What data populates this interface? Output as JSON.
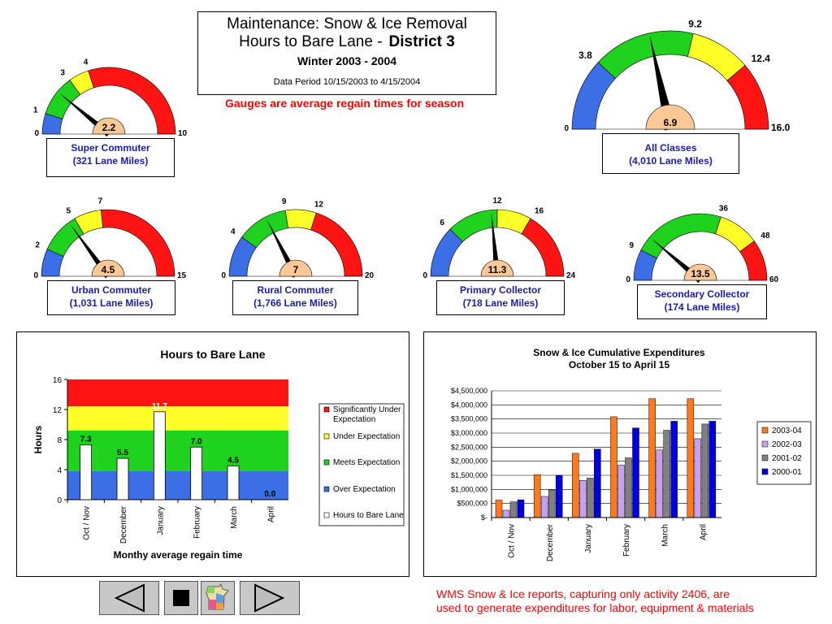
{
  "header": {
    "title_line1": "Maintenance: Snow & Ice Removal",
    "title_line2": "Hours to Bare Lane -",
    "district": "District 3",
    "season": "Winter  2003 - 2004",
    "data_period": "Data Period 10/15/2003 to 4/15/2004",
    "subtitle": "Gauges are average regain times for season"
  },
  "colors": {
    "blue": "#3c6ee6",
    "green": "#1ed21e",
    "yellow": "#ffff28",
    "red": "#ff1414",
    "hub": "#fcc896",
    "label_blue": "#1c1ca8",
    "note_red": "#ff0000"
  },
  "gauges": [
    {
      "id": "super",
      "value": 2.2,
      "value_label": "2.2",
      "min": 0,
      "max": 10,
      "ticks": [
        1,
        3,
        4
      ],
      "min_label": "0",
      "max_label": "10",
      "tick_labels": [
        "1",
        "3",
        "4"
      ],
      "name": "Super Commuter",
      "miles": "(321 Lane Miles)"
    },
    {
      "id": "all",
      "value": 6.9,
      "value_label": "6.9",
      "min": 0,
      "max": 16,
      "ticks": [
        3.8,
        9.2,
        12.4
      ],
      "min_label": "0",
      "max_label": "16.0",
      "tick_labels": [
        "3.8",
        "9.2",
        "12.4"
      ],
      "name": "All Classes",
      "miles": "(4,010 Lane Miles)"
    },
    {
      "id": "urban",
      "value": 4.5,
      "value_label": "4.5",
      "min": 0,
      "max": 15,
      "ticks": [
        2,
        5,
        7
      ],
      "min_label": "0",
      "max_label": "15",
      "tick_labels": [
        "2",
        "5",
        "7"
      ],
      "name": "Urban Commuter",
      "miles": "(1,031 Lane Miles)"
    },
    {
      "id": "rural",
      "value": 7,
      "value_label": "7",
      "min": 0,
      "max": 20,
      "ticks": [
        4,
        9,
        12
      ],
      "min_label": "0",
      "max_label": "20",
      "tick_labels": [
        "4",
        "9",
        "12"
      ],
      "name": "Rural Commuter",
      "miles": "(1,766 Lane Miles)"
    },
    {
      "id": "primary",
      "value": 11.3,
      "value_label": "11.3",
      "min": 0,
      "max": 24,
      "ticks": [
        6,
        12,
        16
      ],
      "min_label": "0",
      "max_label": "24",
      "tick_labels": [
        "6",
        "12",
        "16"
      ],
      "name": "Primary Collector",
      "miles": "(718 Lane Miles)"
    },
    {
      "id": "secondary",
      "value": 13.5,
      "value_label": "13.5",
      "min": 0,
      "max": 60,
      "ticks": [
        9,
        36,
        48
      ],
      "min_label": "0",
      "max_label": "60",
      "tick_labels": [
        "9",
        "36",
        "48"
      ],
      "name": "Secondary Collector",
      "miles": "(174 Lane Miles)"
    }
  ],
  "chart_data": [
    {
      "type": "bar",
      "title": "Hours to Bare Lane",
      "xlabel": "Monthy average regain time",
      "ylabel": "Hours",
      "ylim": [
        0,
        16
      ],
      "yticks": [
        "0",
        "4",
        "8",
        "12",
        "16"
      ],
      "categories": [
        "Oct / Nov",
        "December",
        "January",
        "February",
        "March",
        "April"
      ],
      "series": [
        {
          "name": "Hours to Bare Lane",
          "values": [
            7.3,
            5.5,
            11.7,
            7.0,
            4.5,
            0.0
          ],
          "labels": [
            "7.3",
            "5.5",
            "11.7",
            "7.0",
            "4.5",
            "0.0"
          ]
        }
      ],
      "bands": [
        {
          "name": "Significantly Under Expectation",
          "from": 12.4,
          "to": 16,
          "color": "#ff1414"
        },
        {
          "name": "Under Expectation",
          "from": 9.2,
          "to": 12.4,
          "color": "#ffff28"
        },
        {
          "name": "Meets Expectation",
          "from": 3.8,
          "to": 9.2,
          "color": "#1ed21e"
        },
        {
          "name": "Over Expectation",
          "from": 0,
          "to": 3.8,
          "color": "#3c6ee6"
        }
      ],
      "legend": [
        "Significantly Under Expectation",
        "Under Expectation",
        "Meets Expectation",
        "Over Expectation",
        "Hours to Bare Lane"
      ],
      "legend_position": "right"
    },
    {
      "type": "bar",
      "title": "Snow & Ice Cumulative Expenditures",
      "subtitle": "October 15 to April 15",
      "ylim": [
        0,
        4500000
      ],
      "yticks": [
        "$-",
        "$500,000",
        "$1,000,000",
        "$1,500,000",
        "$2,000,000",
        "$2,500,000",
        "$3,000,000",
        "$3,500,000",
        "$4,000,000",
        "$4,500,000"
      ],
      "categories": [
        "Oct / Nov",
        "December",
        "January",
        "February",
        "March",
        "April"
      ],
      "series": [
        {
          "name": "2003-04",
          "color": "#ff7a1e",
          "values": [
            620000,
            1520000,
            2280000,
            3580000,
            4220000,
            4220000
          ]
        },
        {
          "name": "2002-03",
          "color": "#c8a0f0",
          "values": [
            260000,
            750000,
            1320000,
            1860000,
            2400000,
            2800000
          ]
        },
        {
          "name": "2001-02",
          "color": "#808080",
          "values": [
            560000,
            980000,
            1400000,
            2120000,
            3100000,
            3320000
          ]
        },
        {
          "name": "2000-01",
          "color": "#0000e0",
          "values": [
            630000,
            1500000,
            2430000,
            3180000,
            3420000,
            3420000
          ]
        }
      ],
      "legend_position": "right",
      "grid": true
    }
  ],
  "footer": {
    "note_line1": "WMS Snow & Ice reports, capturing only activity 2406, are",
    "note_line2": "used to generate expenditures for labor, equipment & materials"
  },
  "nav": {
    "prev_icon": "triangle-left-icon",
    "stop_icon": "square-stop-icon",
    "map_icon": "minnesota-map-icon",
    "next_icon": "triangle-right-icon"
  }
}
